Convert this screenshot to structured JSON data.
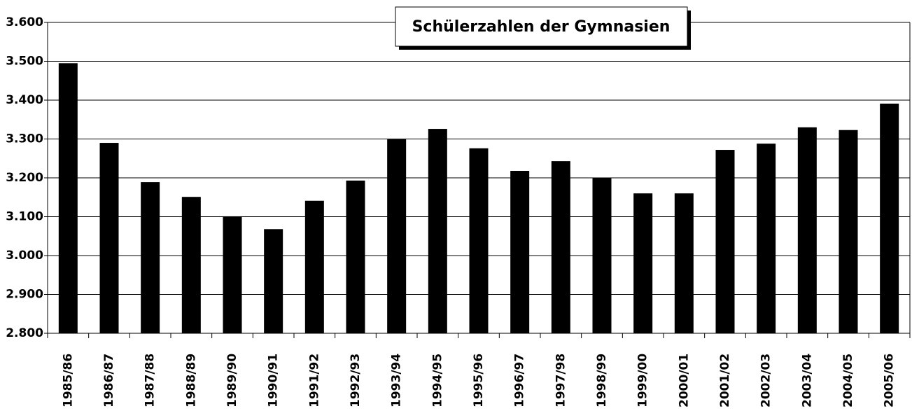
{
  "chart_data": {
    "type": "bar",
    "title": "Schülerzahlen der Gymnasien",
    "categories": [
      "1985/86",
      "1986/87",
      "1987/88",
      "1988/89",
      "1989/90",
      "1990/91",
      "1991/92",
      "1992/93",
      "1993/94",
      "1994/95",
      "1995/96",
      "1996/97",
      "1997/98",
      "1998/99",
      "1999/00",
      "2000/01",
      "2001/02",
      "2002/03",
      "2003/04",
      "2004/05",
      "2005/06"
    ],
    "values": [
      3495,
      3290,
      3189,
      3151,
      3101,
      3068,
      3141,
      3193,
      3299,
      3326,
      3276,
      3218,
      3243,
      3200,
      3160,
      3160,
      3272,
      3288,
      3330,
      3323,
      3391
    ],
    "color": "#000000",
    "ylim": [
      2800,
      3600
    ],
    "yticks": [
      {
        "value": 2800,
        "label": "2.800"
      },
      {
        "value": 2900,
        "label": "2.900"
      },
      {
        "value": 3000,
        "label": "3.000"
      },
      {
        "value": 3100,
        "label": "3.100"
      },
      {
        "value": 3200,
        "label": "3.200"
      },
      {
        "value": 3300,
        "label": "3.300"
      },
      {
        "value": 3400,
        "label": "3.400"
      },
      {
        "value": 3500,
        "label": "3.500"
      },
      {
        "value": 3600,
        "label": "3.600"
      }
    ],
    "grid": true
  }
}
